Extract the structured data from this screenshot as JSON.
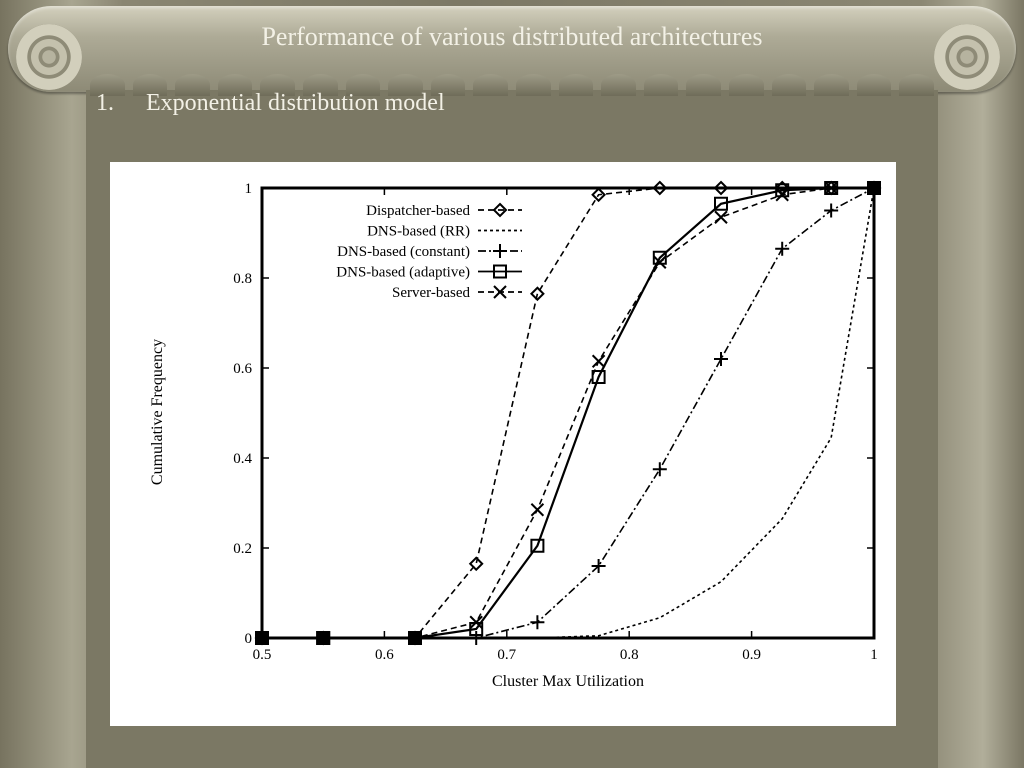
{
  "slide": {
    "title": "Performance of various distributed architectures",
    "bullet_number": "1.",
    "bullet_text": "Exponential distribution model"
  },
  "chart_data": {
    "type": "line",
    "xlabel": "Cluster Max Utilization",
    "ylabel": "Cumulative Frequency",
    "xlim": [
      0.5,
      1.0
    ],
    "ylim": [
      0,
      1
    ],
    "xticks": [
      0.5,
      0.6,
      0.7,
      0.8,
      0.9,
      1
    ],
    "xtick_labels": [
      "0.5",
      "0.6",
      "0.7",
      "0.8",
      "0.9",
      "1"
    ],
    "yticks": [
      0,
      0.2,
      0.4,
      0.6,
      0.8,
      1
    ],
    "ytick_labels": [
      "0",
      "0.2",
      "0.4",
      "0.6",
      "0.8",
      "1"
    ],
    "grid": false,
    "legend_position": "top-left",
    "series": [
      {
        "name": "Dispatcher-based",
        "marker": "diamond",
        "dash": "6,4",
        "x": [
          0.5,
          0.55,
          0.625,
          0.675,
          0.725,
          0.775,
          0.825,
          0.875,
          0.925,
          0.965,
          1.0
        ],
        "y": [
          0,
          0,
          0,
          0.165,
          0.765,
          0.985,
          1.0,
          1.0,
          1.0,
          1.0,
          1.0
        ]
      },
      {
        "name": "DNS-based (RR)",
        "marker": "none",
        "dash": "3,3",
        "x": [
          0.5,
          0.55,
          0.625,
          0.675,
          0.725,
          0.775,
          0.825,
          0.875,
          0.925,
          0.965,
          1.0
        ],
        "y": [
          0,
          0,
          0,
          0,
          0,
          0.005,
          0.045,
          0.125,
          0.265,
          0.445,
          1.0
        ]
      },
      {
        "name": "DNS-based (constant)",
        "marker": "plus",
        "dash": "8,3,2,3",
        "x": [
          0.5,
          0.55,
          0.625,
          0.675,
          0.725,
          0.775,
          0.825,
          0.875,
          0.925,
          0.965,
          1.0
        ],
        "y": [
          0,
          0,
          0,
          0,
          0.035,
          0.16,
          0.375,
          0.62,
          0.865,
          0.95,
          1.0
        ]
      },
      {
        "name": "DNS-based (adaptive)",
        "marker": "square",
        "dash": "",
        "x": [
          0.5,
          0.55,
          0.625,
          0.675,
          0.725,
          0.775,
          0.825,
          0.875,
          0.925,
          0.965,
          1.0
        ],
        "y": [
          0,
          0,
          0,
          0.02,
          0.205,
          0.58,
          0.845,
          0.965,
          0.995,
          1.0,
          1.0
        ]
      },
      {
        "name": "Server-based",
        "marker": "x",
        "dash": "6,4",
        "x": [
          0.5,
          0.55,
          0.625,
          0.675,
          0.725,
          0.775,
          0.825,
          0.875,
          0.925,
          0.965,
          1.0
        ],
        "y": [
          0,
          0,
          0,
          0.035,
          0.285,
          0.615,
          0.835,
          0.935,
          0.985,
          1.0,
          1.0
        ]
      }
    ]
  }
}
